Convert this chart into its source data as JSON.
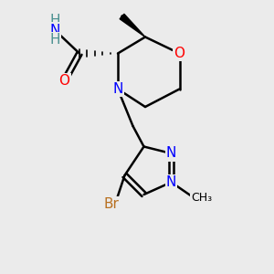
{
  "bg_color": "#ebebeb",
  "atom_colors": {
    "O": "#ff0000",
    "N": "#0000ff",
    "Br": "#b87020",
    "C": "#000000",
    "H": "#4a9090"
  },
  "bond_color": "#000000",
  "bond_width": 1.8,
  "font_size_atoms": 11,
  "font_size_small": 9
}
